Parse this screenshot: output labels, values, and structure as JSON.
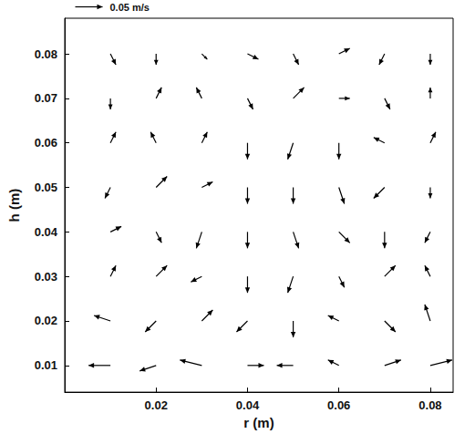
{
  "chart_data": {
    "type": "vector",
    "xlabel": "r (m)",
    "ylabel": "h (m)",
    "xlim": [
      0,
      0.085
    ],
    "ylim": [
      0.004,
      0.088
    ],
    "xticks": [
      0.02,
      0.04,
      0.06,
      0.08
    ],
    "yticks": [
      0.01,
      0.02,
      0.03,
      0.04,
      0.05,
      0.06,
      0.07,
      0.08
    ],
    "reference": {
      "value": 0.05,
      "label": "0.05 m/s"
    },
    "color": "#000000",
    "vectors": [
      [
        0.01,
        0.08,
        0.01,
        -0.02
      ],
      [
        0.02,
        0.08,
        0.0,
        -0.02
      ],
      [
        0.03,
        0.08,
        0.01,
        -0.01
      ],
      [
        0.04,
        0.08,
        0.02,
        -0.01
      ],
      [
        0.05,
        0.08,
        0.01,
        -0.02
      ],
      [
        0.06,
        0.08,
        0.02,
        0.01
      ],
      [
        0.07,
        0.08,
        -0.01,
        -0.02
      ],
      [
        0.08,
        0.08,
        0.0,
        -0.02
      ],
      [
        0.01,
        0.07,
        0.0,
        -0.02
      ],
      [
        0.02,
        0.07,
        0.01,
        0.02
      ],
      [
        0.03,
        0.07,
        -0.01,
        0.02
      ],
      [
        0.04,
        0.07,
        0.01,
        -0.02
      ],
      [
        0.05,
        0.07,
        0.02,
        0.02
      ],
      [
        0.06,
        0.07,
        0.02,
        0.0
      ],
      [
        0.07,
        0.07,
        0.01,
        -0.02
      ],
      [
        0.08,
        0.07,
        0.0,
        0.02
      ],
      [
        0.01,
        0.06,
        0.01,
        0.02
      ],
      [
        0.02,
        0.06,
        -0.01,
        0.02
      ],
      [
        0.03,
        0.06,
        0.01,
        0.02
      ],
      [
        0.04,
        0.06,
        0.0,
        -0.03
      ],
      [
        0.05,
        0.06,
        -0.01,
        -0.03
      ],
      [
        0.06,
        0.06,
        0.0,
        -0.03
      ],
      [
        0.07,
        0.06,
        -0.02,
        0.01
      ],
      [
        0.08,
        0.06,
        0.01,
        0.02
      ],
      [
        0.01,
        0.05,
        -0.01,
        -0.02
      ],
      [
        0.02,
        0.05,
        0.02,
        0.02
      ],
      [
        0.03,
        0.05,
        0.02,
        0.01
      ],
      [
        0.04,
        0.05,
        0.0,
        -0.03
      ],
      [
        0.05,
        0.05,
        0.0,
        -0.03
      ],
      [
        0.06,
        0.05,
        0.01,
        -0.03
      ],
      [
        0.07,
        0.05,
        -0.02,
        -0.02
      ],
      [
        0.08,
        0.05,
        0.0,
        -0.02
      ],
      [
        0.01,
        0.04,
        0.02,
        0.01
      ],
      [
        0.02,
        0.04,
        0.01,
        -0.02
      ],
      [
        0.03,
        0.04,
        -0.01,
        -0.03
      ],
      [
        0.04,
        0.04,
        0.0,
        -0.03
      ],
      [
        0.05,
        0.04,
        0.01,
        -0.03
      ],
      [
        0.06,
        0.04,
        0.02,
        -0.02
      ],
      [
        0.07,
        0.04,
        0.0,
        -0.03
      ],
      [
        0.08,
        0.04,
        -0.01,
        -0.02
      ],
      [
        0.01,
        0.03,
        0.01,
        0.02
      ],
      [
        0.02,
        0.03,
        0.02,
        0.02
      ],
      [
        0.03,
        0.03,
        -0.02,
        -0.01
      ],
      [
        0.04,
        0.03,
        0.0,
        -0.03
      ],
      [
        0.05,
        0.03,
        -0.01,
        -0.03
      ],
      [
        0.06,
        0.03,
        0.01,
        -0.02
      ],
      [
        0.07,
        0.03,
        0.02,
        0.02
      ],
      [
        0.08,
        0.03,
        -0.01,
        0.02
      ],
      [
        0.01,
        0.02,
        -0.03,
        0.01
      ],
      [
        0.02,
        0.02,
        -0.02,
        -0.02
      ],
      [
        0.03,
        0.02,
        0.02,
        0.02
      ],
      [
        0.04,
        0.02,
        -0.02,
        -0.02
      ],
      [
        0.05,
        0.02,
        0.0,
        -0.03
      ],
      [
        0.06,
        0.02,
        -0.02,
        0.01
      ],
      [
        0.07,
        0.02,
        0.02,
        -0.02
      ],
      [
        0.08,
        0.02,
        -0.01,
        0.03
      ],
      [
        0.01,
        0.01,
        -0.04,
        0.0
      ],
      [
        0.02,
        0.01,
        -0.03,
        -0.01
      ],
      [
        0.03,
        0.01,
        -0.04,
        0.01
      ],
      [
        0.04,
        0.01,
        0.03,
        0.0
      ],
      [
        0.05,
        0.01,
        -0.03,
        0.0
      ],
      [
        0.06,
        0.01,
        -0.02,
        0.01
      ],
      [
        0.07,
        0.01,
        0.03,
        0.01
      ],
      [
        0.08,
        0.01,
        0.04,
        0.01
      ]
    ]
  }
}
